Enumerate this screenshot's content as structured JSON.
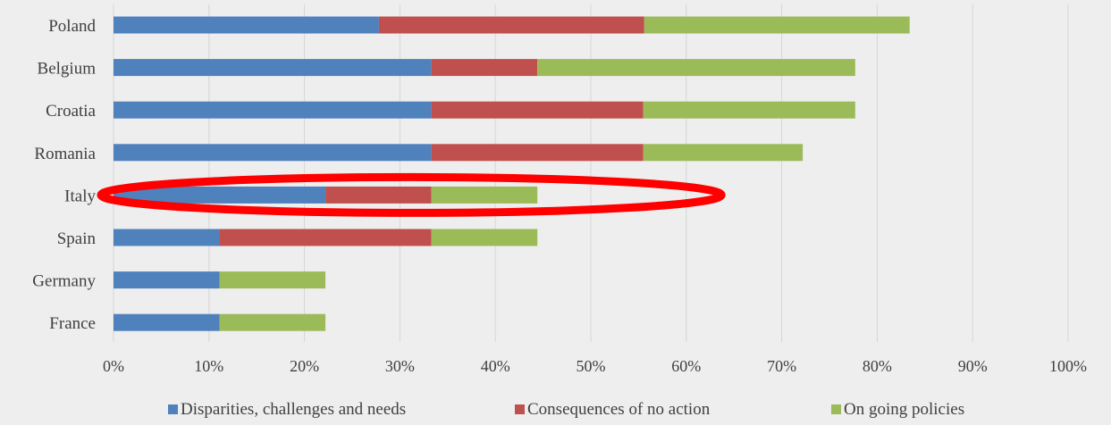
{
  "chart_data": {
    "type": "bar",
    "orientation": "horizontal",
    "stacked": true,
    "title": "",
    "xlabel": "",
    "ylabel": "",
    "xlim": [
      0,
      1
    ],
    "categories": [
      "Poland",
      "Belgium",
      "Croatia",
      "Romania",
      "Italy",
      "Spain",
      "Germany",
      "France"
    ],
    "x_ticks": [
      "0%",
      "10%",
      "20%",
      "30%",
      "40%",
      "50%",
      "60%",
      "70%",
      "80%",
      "90%",
      "100%"
    ],
    "grid": "vertical",
    "legend_position": "bottom",
    "series": [
      {
        "name": "Disparities, challenges and needs",
        "color": "#4f81bd",
        "values": [
          0.278,
          0.333,
          0.333,
          0.333,
          0.222,
          0.111,
          0.111,
          0.111
        ]
      },
      {
        "name": "Consequences of no action",
        "color": "#c0504d",
        "values": [
          0.278,
          0.111,
          0.222,
          0.222,
          0.111,
          0.222,
          0.0,
          0.0
        ]
      },
      {
        "name": "On going policies",
        "color": "#9bbb59",
        "values": [
          0.278,
          0.333,
          0.222,
          0.167,
          0.111,
          0.111,
          0.111,
          0.111
        ]
      }
    ],
    "annotations": [
      {
        "type": "ellipse",
        "target_category": "Italy",
        "color": "#ff0000"
      }
    ]
  }
}
